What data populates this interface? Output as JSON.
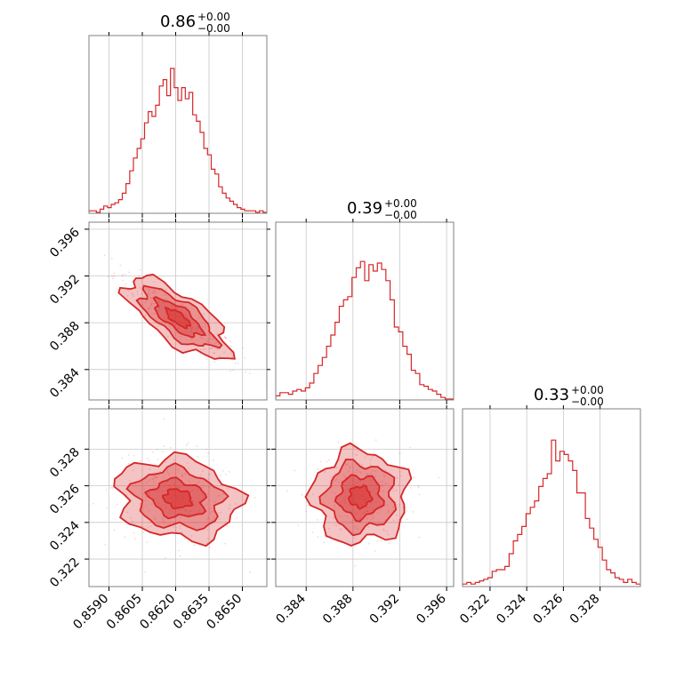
{
  "chart_data": {
    "type": "corner",
    "color": "#d62728",
    "panels": [
      {
        "id": "h0",
        "type": "histogram",
        "title": {
          "value": "0.86",
          "sup": "+0.00",
          "sub": "−0.00"
        },
        "xlim": [
          0.8581,
          0.8661
        ],
        "xticks": [
          0.859,
          0.8605,
          0.862,
          0.8635,
          0.865
        ],
        "xtick_labels": [],
        "yticks": [],
        "ytick_labels": [],
        "profile": [
          0.01,
          0.01,
          0.0,
          0.02,
          0.04,
          0.03,
          0.05,
          0.06,
          0.08,
          0.12,
          0.18,
          0.26,
          0.34,
          0.4,
          0.46,
          0.56,
          0.63,
          0.6,
          0.67,
          0.79,
          0.83,
          0.73,
          0.9,
          0.78,
          0.7,
          0.78,
          0.71,
          0.75,
          0.61,
          0.57,
          0.5,
          0.4,
          0.36,
          0.27,
          0.24,
          0.16,
          0.12,
          0.09,
          0.07,
          0.05,
          0.03,
          0.02,
          0.01,
          0.01,
          0.01,
          0.0,
          0.01,
          0.0
        ]
      },
      {
        "id": "s10",
        "type": "scatter_contour",
        "xlim": [
          0.8581,
          0.8661
        ],
        "ylim": [
          0.3814,
          0.3966
        ],
        "xticks": [
          0.859,
          0.8605,
          0.862,
          0.8635,
          0.865
        ],
        "xtick_labels": [],
        "yticks": [
          0.384,
          0.388,
          0.392,
          0.396
        ],
        "ytick_labels": [
          "0.384",
          "0.388",
          "0.392",
          "0.396"
        ],
        "center": [
          0.8621,
          0.3884
        ],
        "spread": [
          0.00125,
          0.00185
        ],
        "correlation": -0.92
      },
      {
        "id": "h1",
        "type": "histogram",
        "title": {
          "value": "0.39",
          "sup": "+0.00",
          "sub": "−0.00"
        },
        "xlim": [
          0.3814,
          0.3966
        ],
        "xticks": [
          0.384,
          0.388,
          0.392,
          0.396
        ],
        "xtick_labels": [],
        "yticks": [],
        "ytick_labels": [],
        "profile": [
          0.02,
          0.04,
          0.04,
          0.03,
          0.05,
          0.06,
          0.05,
          0.07,
          0.1,
          0.16,
          0.21,
          0.26,
          0.33,
          0.4,
          0.48,
          0.58,
          0.62,
          0.64,
          0.76,
          0.82,
          0.86,
          0.74,
          0.84,
          0.8,
          0.85,
          0.81,
          0.74,
          0.62,
          0.45,
          0.42,
          0.33,
          0.28,
          0.18,
          0.16,
          0.09,
          0.08,
          0.06,
          0.05,
          0.03,
          0.01,
          0.0,
          0.0
        ]
      },
      {
        "id": "s20",
        "type": "scatter_contour",
        "xlim": [
          0.8581,
          0.8661
        ],
        "ylim": [
          0.3205,
          0.3302
        ],
        "xticks": [
          0.859,
          0.8605,
          0.862,
          0.8635,
          0.865
        ],
        "xtick_labels": [
          "0.8590",
          "0.8605",
          "0.8620",
          "0.8635",
          "0.8650"
        ],
        "yticks": [
          0.322,
          0.324,
          0.326,
          0.328
        ],
        "ytick_labels": [
          "0.322",
          "0.324",
          "0.326",
          "0.328"
        ],
        "center": [
          0.8621,
          0.3253
        ],
        "spread": [
          0.00125,
          0.00115
        ],
        "correlation": -0.25
      },
      {
        "id": "s21",
        "type": "scatter_contour",
        "xlim": [
          0.3814,
          0.3966
        ],
        "ylim": [
          0.3205,
          0.3302
        ],
        "xticks": [
          0.384,
          0.388,
          0.392,
          0.396
        ],
        "xtick_labels": [
          "0.384",
          "0.388",
          "0.392",
          "0.396"
        ],
        "yticks": [
          0.322,
          0.324,
          0.326,
          0.328
        ],
        "ytick_labels": [],
        "center": [
          0.3886,
          0.3254
        ],
        "spread": [
          0.00185,
          0.00115
        ],
        "correlation": 0.0
      },
      {
        "id": "h2",
        "type": "histogram",
        "title": {
          "value": "0.33",
          "sup": "+0.00",
          "sub": "−0.00"
        },
        "xlim": [
          0.3205,
          0.3302
        ],
        "xticks": [
          0.322,
          0.324,
          0.326,
          0.328
        ],
        "xtick_labels": [
          "0.322",
          "0.324",
          "0.326",
          "0.328"
        ],
        "yticks": [],
        "ytick_labels": [],
        "profile": [
          0.01,
          0.02,
          0.01,
          0.02,
          0.03,
          0.04,
          0.05,
          0.09,
          0.1,
          0.1,
          0.12,
          0.2,
          0.28,
          0.32,
          0.37,
          0.45,
          0.49,
          0.53,
          0.62,
          0.67,
          0.7,
          0.91,
          0.78,
          0.84,
          0.82,
          0.78,
          0.72,
          0.58,
          0.58,
          0.42,
          0.36,
          0.29,
          0.24,
          0.16,
          0.1,
          0.08,
          0.05,
          0.04,
          0.02,
          0.04,
          0.02,
          0.01
        ]
      }
    ]
  }
}
